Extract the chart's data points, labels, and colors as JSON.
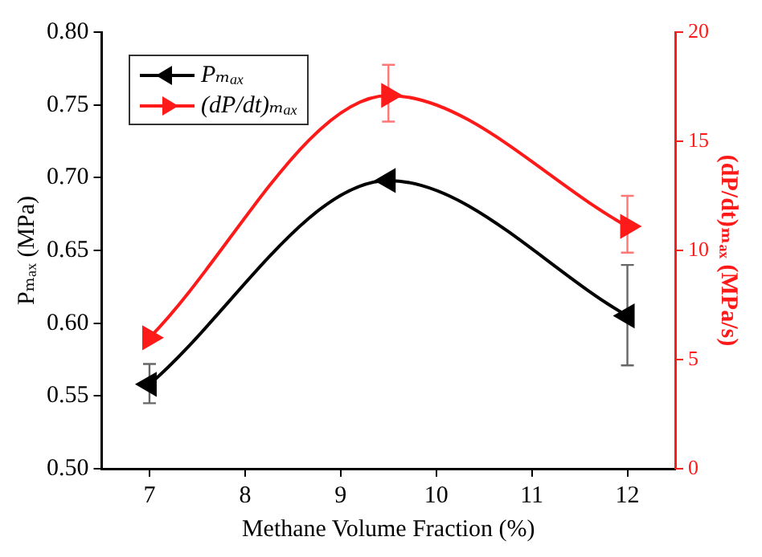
{
  "chart_data": {
    "type": "line",
    "xlabel": "Methane Volume Fraction (%)",
    "ylabel": "Pₘₐₓ (MPa)",
    "y2label": "(dP/dt)ₘₐₓ (MPa/s)",
    "x": [
      7,
      9.5,
      12
    ],
    "series": [
      {
        "name": "Pₘₐₓ",
        "color": "#000000",
        "marker": "triangle-left",
        "values": [
          0.558,
          0.698,
          0.605
        ],
        "errors": [
          [
            0.545,
            0.572
          ],
          null,
          [
            0.571,
            0.64
          ]
        ]
      },
      {
        "name": "(dP/dt)ₘₐₓ",
        "color": "#ff1a1a",
        "marker": "triangle-right",
        "axis": "y2",
        "values": [
          6.0,
          17.1,
          11.1
        ],
        "errors": [
          null,
          [
            15.9,
            18.5
          ],
          [
            9.9,
            12.5
          ]
        ]
      }
    ],
    "xlim": [
      6.5,
      12.5
    ],
    "xticks": [
      7,
      8,
      9,
      10,
      11,
      12
    ],
    "ylim": [
      0.5,
      0.8
    ],
    "yticks": [
      {
        "value": 0.5,
        "label": "0.50"
      },
      0.55,
      {
        "value": 0.6,
        "label": "0.60"
      },
      0.65,
      {
        "value": 0.7,
        "label": "0.70"
      },
      0.75,
      {
        "value": 0.8,
        "label": "0.80"
      }
    ],
    "y2lim": [
      0,
      20
    ],
    "y2ticks": [
      0,
      5,
      10,
      15,
      20
    ],
    "legend": "top left",
    "grid": false
  }
}
